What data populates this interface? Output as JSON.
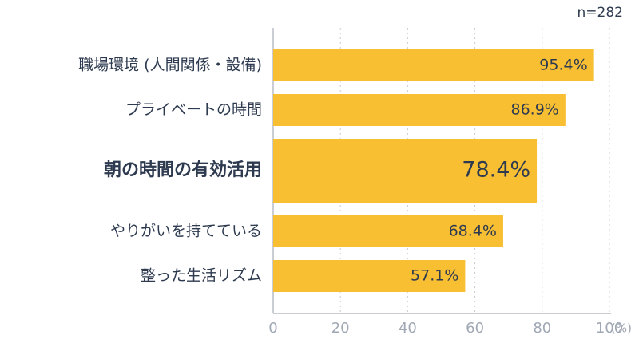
{
  "chart_data": {
    "type": "barh",
    "annotation": "n=282",
    "x_label": "(%)",
    "categories": [
      "職場環境 (人間関係・設備)",
      "プライベートの時間",
      "朝の時間の有効活用",
      "やりがいを持てている",
      "整った生活リズム"
    ],
    "values": [
      95.4,
      86.9,
      78.4,
      68.4,
      57.1
    ],
    "value_labels": [
      "95.4%",
      "86.9%",
      "78.4%",
      "68.4%",
      "57.1%"
    ],
    "highlight_index": 2,
    "color": "#f8bf33",
    "xlim": [
      0,
      100
    ],
    "xticks": [
      0,
      20,
      40,
      60,
      80,
      100
    ],
    "grid": true
  }
}
